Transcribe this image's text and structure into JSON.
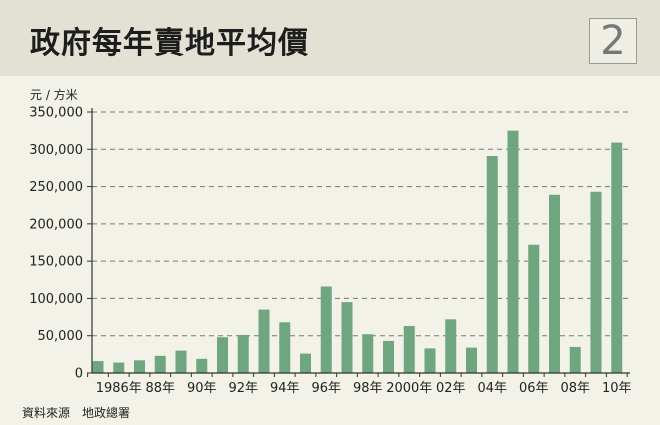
{
  "title": "政府每年賣地平均價",
  "badge": "2",
  "unit_label": "元 / 方米",
  "source": "資料來源　地政總署",
  "colors": {
    "bar": "#6fa57f",
    "grid": "#777777",
    "header_bg": "#e3e1d3",
    "page_bg": "#f3f2e8"
  },
  "chart_data": {
    "type": "bar",
    "ylabel": "元 / 方米",
    "ylim": [
      0,
      350000
    ],
    "yticks": [
      "0",
      "50,000",
      "100,000",
      "150,000",
      "200,000",
      "250,000",
      "300,000",
      "350,000"
    ],
    "grid": "dashed horizontal",
    "categories": [
      1985,
      1986,
      1987,
      1988,
      1989,
      1990,
      1991,
      1992,
      1993,
      1994,
      1995,
      1996,
      1997,
      1998,
      1999,
      2000,
      2001,
      2002,
      2003,
      2004,
      2005,
      2006,
      2007,
      2008,
      2009,
      2010
    ],
    "values": [
      16000,
      14000,
      17000,
      23000,
      30000,
      19000,
      48000,
      51000,
      85000,
      68000,
      26000,
      116000,
      95000,
      52000,
      43000,
      63000,
      33000,
      72000,
      34000,
      291000,
      325000,
      172000,
      239000,
      35000,
      243000,
      309000
    ],
    "xtick_labels": [
      {
        "year": 1986,
        "label": "1986年"
      },
      {
        "year": 1988,
        "label": "88年"
      },
      {
        "year": 1990,
        "label": "90年"
      },
      {
        "year": 1992,
        "label": "92年"
      },
      {
        "year": 1994,
        "label": "94年"
      },
      {
        "year": 1996,
        "label": "96年"
      },
      {
        "year": 1998,
        "label": "98年"
      },
      {
        "year": 2000,
        "label": "2000年"
      },
      {
        "year": 2002,
        "label": "02年"
      },
      {
        "year": 2004,
        "label": "04年"
      },
      {
        "year": 2006,
        "label": "06年"
      },
      {
        "year": 2008,
        "label": "08年"
      },
      {
        "year": 2010,
        "label": "10年"
      }
    ]
  }
}
